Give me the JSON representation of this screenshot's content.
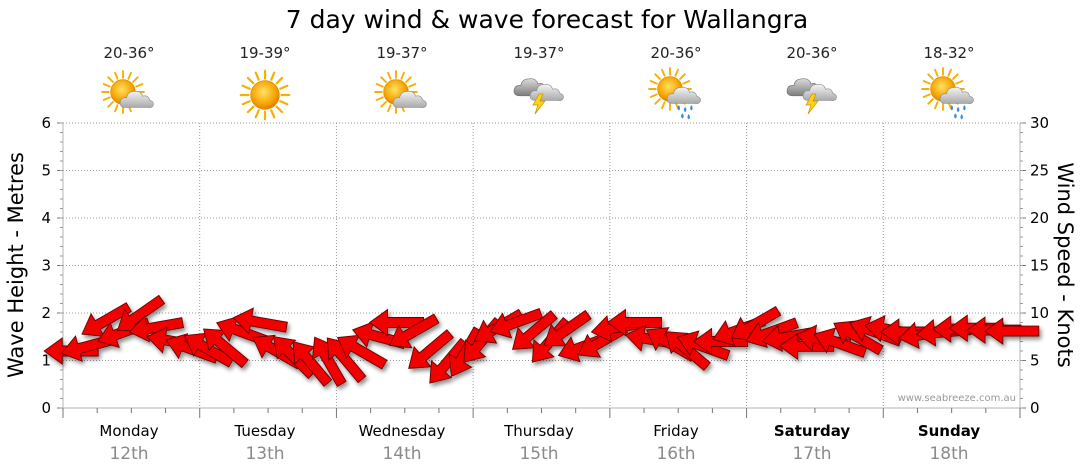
{
  "title": "7 day wind & wave forecast for Wallangra",
  "watermark": "www.seabreeze.com.au",
  "colors": {
    "arrow_fill": "#f20000",
    "arrow_stroke": "#6a0000",
    "grid": "#999999",
    "day_date": "#8a8a8a"
  },
  "days": [
    {
      "name": "Monday",
      "date": "12th",
      "temp": "20-36°",
      "icon": "partly-cloudy-icon",
      "bold": false
    },
    {
      "name": "Tuesday",
      "date": "13th",
      "temp": "19-39°",
      "icon": "sunny-icon",
      "bold": false
    },
    {
      "name": "Wednesday",
      "date": "14th",
      "temp": "19-37°",
      "icon": "partly-cloudy-icon",
      "bold": false
    },
    {
      "name": "Thursday",
      "date": "15th",
      "temp": "19-37°",
      "icon": "storm-icon",
      "bold": false
    },
    {
      "name": "Friday",
      "date": "16th",
      "temp": "20-36°",
      "icon": "showers-icon",
      "bold": false
    },
    {
      "name": "Saturday",
      "date": "17th",
      "temp": "20-36°",
      "icon": "storm-icon",
      "bold": true
    },
    {
      "name": "Sunday",
      "date": "18th",
      "temp": "18-32°",
      "icon": "showers-icon",
      "bold": true
    }
  ],
  "chart_data": {
    "type": "line",
    "title": "7 day wind & wave forecast for Wallangra",
    "ylabel_left": "Wave Height - Metres",
    "ylabel_right": "Wind Speed - Knots",
    "ylim_left": [
      0,
      6
    ],
    "ylim_right": [
      0,
      30
    ],
    "yticks_left": [
      "0",
      "1",
      "2",
      "3",
      "4",
      "5",
      "6"
    ],
    "yticks_right": [
      "0",
      "5",
      "10",
      "15",
      "20",
      "25",
      "30"
    ],
    "grid": true,
    "categories": [
      "Monday 12th",
      "Tuesday 13th",
      "Wednesday 14th",
      "Thursday 15th",
      "Friday 16th",
      "Saturday 17th",
      "Sunday 18th"
    ],
    "series": [
      {
        "type": "wind-arrows",
        "x_day": [
          0.0,
          0.12,
          0.25,
          0.38,
          0.5,
          0.62,
          0.75,
          0.88,
          1.0,
          1.12,
          1.25,
          1.38,
          1.5,
          1.62,
          1.75,
          1.88,
          2.0,
          2.12,
          2.25,
          2.38,
          2.5,
          2.62,
          2.75,
          2.88,
          3.0,
          3.12,
          3.25,
          3.38,
          3.5,
          3.62,
          3.75,
          3.88,
          4.0,
          4.12,
          4.25,
          4.38,
          4.5,
          4.62,
          4.75,
          4.88,
          5.0,
          5.12,
          5.25,
          5.38,
          5.5,
          5.62,
          5.75,
          5.88,
          6.0,
          6.12,
          6.25,
          6.38,
          6.5,
          6.62,
          6.75,
          6.88
        ],
        "knots": [
          6.0,
          6.5,
          9.2,
          8.0,
          9.8,
          8.5,
          7.0,
          6.2,
          6.2,
          6.5,
          8.0,
          9.0,
          6.0,
          5.5,
          4.8,
          5.0,
          5.2,
          6.0,
          7.5,
          9.0,
          8.0,
          6.0,
          4.8,
          5.8,
          7.0,
          8.5,
          9.0,
          8.0,
          7.0,
          8.2,
          6.5,
          7.0,
          8.5,
          9.0,
          7.2,
          6.8,
          6.2,
          6.5,
          7.0,
          8.2,
          8.8,
          8.0,
          7.5,
          6.5,
          7.2,
          6.8,
          7.5,
          8.0,
          8.2,
          8.0,
          7.8,
          8.0,
          8.3,
          8.4,
          8.2,
          8.1
        ],
        "direction_deg": [
          270,
          255,
          240,
          250,
          235,
          260,
          280,
          290,
          300,
          310,
          290,
          280,
          300,
          315,
          320,
          330,
          320,
          300,
          285,
          270,
          240,
          230,
          220,
          210,
          220,
          240,
          250,
          230,
          220,
          235,
          250,
          240,
          260,
          270,
          280,
          300,
          310,
          290,
          270,
          250,
          240,
          250,
          260,
          270,
          280,
          290,
          300,
          290,
          280,
          270,
          260,
          265,
          270,
          270,
          270,
          270
        ]
      }
    ]
  }
}
